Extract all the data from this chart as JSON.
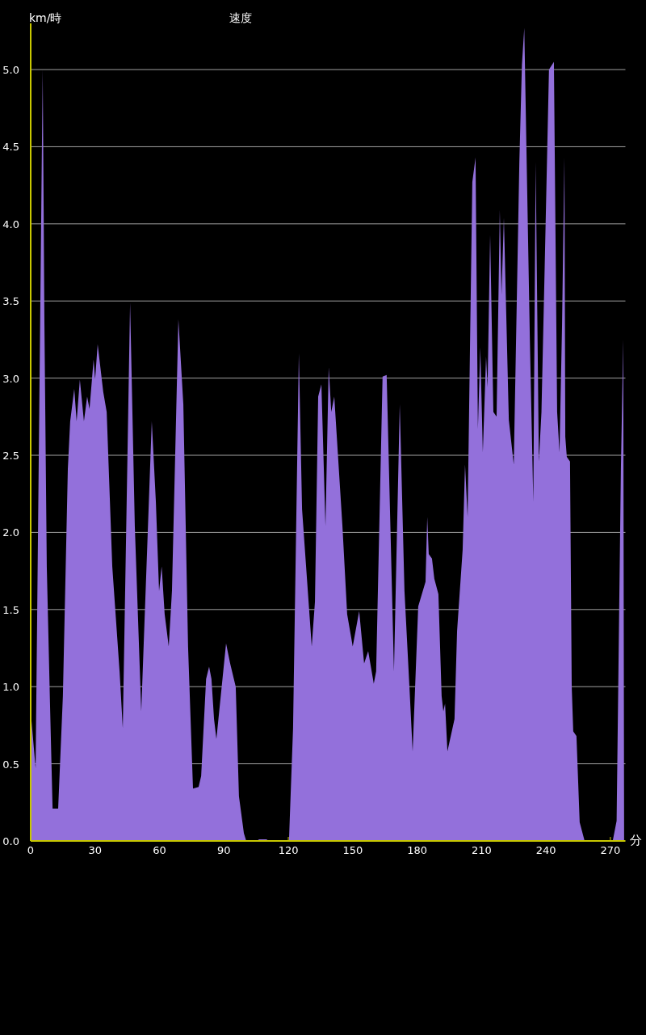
{
  "chart_data": {
    "type": "area",
    "title": "速度",
    "ylabel": "km/時",
    "xlabel": "分",
    "xlim": [
      0,
      277
    ],
    "ylim": [
      0,
      5.3
    ],
    "xticks": [
      0,
      30,
      60,
      90,
      120,
      150,
      180,
      210,
      240,
      270
    ],
    "yticks": [
      {
        "value": 0,
        "label": "0.0"
      },
      {
        "value": 0.5,
        "label": "0.5"
      },
      {
        "value": 1,
        "label": "1.0"
      },
      {
        "value": 1.5,
        "label": "1.5"
      },
      {
        "value": 2,
        "label": "2.0"
      },
      {
        "value": 2.5,
        "label": "2.5"
      },
      {
        "value": 3,
        "label": "3.0"
      },
      {
        "value": 3.5,
        "label": "3.5"
      },
      {
        "value": 4,
        "label": "4.0"
      },
      {
        "value": 4.5,
        "label": "4.5"
      },
      {
        "value": 5,
        "label": "5.0"
      }
    ],
    "grid": "y",
    "series": [
      {
        "color": "#9370db",
        "x": [
          0,
          2.3,
          5.6,
          6.4,
          7.5,
          9,
          10.2,
          12.8,
          15,
          17.3,
          18.4,
          20.3,
          21.4,
          22.9,
          24.8,
          26.3,
          27.4,
          29.3,
          30,
          31.2,
          33.8,
          35.4,
          38,
          41.4,
          42.9,
          46.3,
          48.5,
          51.5,
          56.4,
          58.3,
          59.8,
          61,
          62.4,
          64.3,
          65.8,
          68.8,
          71.1,
          73.3,
          75.6,
          78.2,
          79.4,
          81.7,
          83.1,
          84.2,
          85.4,
          86.5,
          91,
          92.9,
          95.5,
          97,
          99.3,
          100.4,
          105.3,
          106.4,
          109.8,
          110.9,
          120.3,
          122.2,
          124.9,
          126.4,
          130.9,
          132.4,
          133.9,
          135.4,
          137.3,
          138.8,
          140,
          141.4,
          145.2,
          147.4,
          150,
          153,
          155.3,
          157.2,
          159.8,
          160.9,
          163.9,
          165.8,
          169.2,
          171.9,
          174.1,
          176.4,
          177.9,
          180.5,
          183.9,
          184.7,
          185.4,
          186.9,
          188,
          189.9,
          191.4,
          192.2,
          193,
          194.1,
          197.4,
          198.6,
          201.2,
          202.3,
          203.5,
          205.7,
          207.2,
          208.3,
          209.4,
          210.6,
          212.1,
          212.8,
          214,
          215.5,
          217,
          218.5,
          219.3,
          220.4,
          222.7,
          225,
          227.6,
          228.8,
          229.9,
          232.5,
          234.1,
          235.2,
          236.7,
          237.9,
          239.4,
          241.4,
          243.7,
          245.2,
          246.3,
          247.5,
          248.6,
          249,
          249.7,
          251.2,
          252,
          252.7,
          254.2,
          255.7,
          258,
          271.1,
          272.9,
          274.9,
          276,
          276.4
        ],
        "values": [
          0.84,
          0.47,
          5.0,
          3.35,
          1.78,
          0.89,
          0.21,
          0.21,
          0.94,
          2.41,
          2.72,
          2.93,
          2.72,
          2.99,
          2.72,
          2.88,
          2.8,
          3.12,
          2.99,
          3.22,
          2.91,
          2.78,
          1.78,
          1.1,
          0.73,
          3.49,
          2.04,
          0.84,
          2.72,
          2.2,
          1.62,
          1.78,
          1.47,
          1.26,
          1.62,
          3.38,
          2.83,
          1.26,
          0.34,
          0.35,
          0.42,
          1.05,
          1.13,
          1.05,
          0.79,
          0.66,
          1.28,
          1.15,
          1.0,
          0.29,
          0.05,
          0,
          0,
          0.01,
          0.01,
          0,
          0,
          0.73,
          3.16,
          2.15,
          1.26,
          1.55,
          2.88,
          2.96,
          2.04,
          3.07,
          2.78,
          2.88,
          2.04,
          1.47,
          1.26,
          1.49,
          1.15,
          1.23,
          1.02,
          1.1,
          3.01,
          3.02,
          1.1,
          2.83,
          1.62,
          1.0,
          0.58,
          1.52,
          1.68,
          2.1,
          1.86,
          1.83,
          1.7,
          1.6,
          0.94,
          0.84,
          0.89,
          0.58,
          0.79,
          1.36,
          1.89,
          2.44,
          2.1,
          4.27,
          4.43,
          2.67,
          3.2,
          2.52,
          3.14,
          2.94,
          3.93,
          2.78,
          2.75,
          4.09,
          3.54,
          4.04,
          2.73,
          2.44,
          4.4,
          5.03,
          5.27,
          3.25,
          2.2,
          4.4,
          2.46,
          2.78,
          3.72,
          5.0,
          5.05,
          2.78,
          2.52,
          3.35,
          4.43,
          2.62,
          2.49,
          2.46,
          1.0,
          0.71,
          0.68,
          0.12,
          0,
          0,
          0.13,
          2.41,
          3.25,
          0
        ]
      }
    ]
  }
}
